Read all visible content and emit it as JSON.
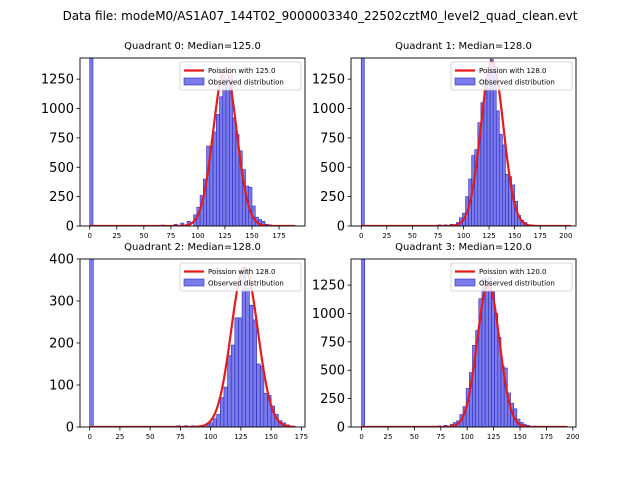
{
  "suptitle": "Data file: modeM0/AS1A07_144T02_9000003340_22502cztM0_level2_quad_clean.evt",
  "colors": {
    "fit": "#e41a1c",
    "hist_fill": "#7b7bea",
    "hist_edge": "#2a2ac0",
    "axis": "#000000"
  },
  "chart_data": [
    {
      "type": "bar",
      "title": "Quadrant 0: Median=125.0",
      "xlim": [
        -9,
        199
      ],
      "ylim": [
        0,
        1430
      ],
      "xticks": [
        0,
        25,
        50,
        75,
        100,
        125,
        150,
        175
      ],
      "yticks": [
        0,
        250,
        500,
        750,
        1000,
        1250
      ],
      "legend": {
        "fit_label": "Poission with 125.0",
        "hist_label": "Observed distribution",
        "position": "top-right"
      },
      "bins": [
        [
          0,
          1430
        ],
        [
          66,
          8
        ],
        [
          72,
          5
        ],
        [
          78,
          15
        ],
        [
          84,
          25
        ],
        [
          90,
          40
        ],
        [
          96,
          95
        ],
        [
          99,
          160
        ],
        [
          102,
          260
        ],
        [
          105,
          400
        ],
        [
          108,
          680
        ],
        [
          111,
          680
        ],
        [
          114,
          800
        ],
        [
          117,
          950
        ],
        [
          120,
          1100
        ],
        [
          123,
          1280
        ],
        [
          126,
          1250
        ],
        [
          129,
          1280
        ],
        [
          132,
          920
        ],
        [
          135,
          780
        ],
        [
          138,
          640
        ],
        [
          141,
          480
        ],
        [
          144,
          340
        ],
        [
          147,
          330
        ],
        [
          150,
          170
        ],
        [
          153,
          75
        ],
        [
          156,
          55
        ],
        [
          159,
          40
        ],
        [
          162,
          15
        ],
        [
          165,
          10
        ]
      ],
      "fit": {
        "mean": 125,
        "sigma": 10.8,
        "peak": 1340,
        "x_range": [
          0,
          190
        ]
      }
    },
    {
      "type": "bar",
      "title": "Quadrant 1: Median=128.0",
      "xlim": [
        -10,
        210
      ],
      "ylim": [
        0,
        1430
      ],
      "xticks": [
        0,
        25,
        50,
        75,
        100,
        125,
        150,
        175,
        200
      ],
      "yticks": [
        0,
        250,
        500,
        750,
        1000,
        1250
      ],
      "legend": {
        "fit_label": "Poission with 128.0",
        "hist_label": "Observed distribution",
        "position": "top-right"
      },
      "bins": [
        [
          0,
          1430
        ],
        [
          75,
          10
        ],
        [
          81,
          10
        ],
        [
          87,
          15
        ],
        [
          93,
          30
        ],
        [
          96,
          70
        ],
        [
          99,
          110
        ],
        [
          102,
          250
        ],
        [
          105,
          400
        ],
        [
          108,
          600
        ],
        [
          111,
          650
        ],
        [
          114,
          880
        ],
        [
          117,
          1050
        ],
        [
          120,
          1240
        ],
        [
          123,
          1330
        ],
        [
          126,
          1420
        ],
        [
          129,
          1360
        ],
        [
          132,
          980
        ],
        [
          135,
          780
        ],
        [
          138,
          690
        ],
        [
          141,
          440
        ],
        [
          144,
          420
        ],
        [
          147,
          350
        ],
        [
          150,
          210
        ],
        [
          153,
          90
        ],
        [
          156,
          50
        ],
        [
          159,
          30
        ],
        [
          165,
          10
        ],
        [
          171,
          5
        ]
      ],
      "fit": {
        "mean": 128,
        "sigma": 11.0,
        "peak": 1400,
        "x_range": [
          0,
          205
        ]
      }
    },
    {
      "type": "bar",
      "title": "Quadrant 2: Median=128.0",
      "xlim": [
        -8,
        178
      ],
      "ylim": [
        0,
        400
      ],
      "xticks": [
        0,
        25,
        50,
        75,
        100,
        125,
        150,
        175
      ],
      "yticks": [
        0,
        100,
        200,
        300,
        400
      ],
      "legend": {
        "fit_label": "Poission with 128.0",
        "hist_label": "Observed distribution",
        "position": "top-right"
      },
      "bins": [
        [
          0,
          400
        ],
        [
          72,
          3
        ],
        [
          78,
          3
        ],
        [
          84,
          3
        ],
        [
          90,
          3
        ],
        [
          96,
          5
        ],
        [
          99,
          10
        ],
        [
          102,
          20
        ],
        [
          105,
          30
        ],
        [
          108,
          70
        ],
        [
          111,
          95
        ],
        [
          114,
          170
        ],
        [
          117,
          195
        ],
        [
          120,
          260
        ],
        [
          123,
          260
        ],
        [
          126,
          370
        ],
        [
          129,
          330
        ],
        [
          132,
          290
        ],
        [
          135,
          255
        ],
        [
          138,
          150
        ],
        [
          141,
          145
        ],
        [
          144,
          80
        ],
        [
          147,
          75
        ],
        [
          150,
          50
        ],
        [
          153,
          30
        ],
        [
          156,
          15
        ],
        [
          159,
          10
        ],
        [
          162,
          5
        ]
      ],
      "fit": {
        "mean": 128,
        "sigma": 11.0,
        "peak": 380,
        "x_range": [
          0,
          170
        ]
      }
    },
    {
      "type": "bar",
      "title": "Quadrant 3: Median=120.0",
      "xlim": [
        -10,
        203
      ],
      "ylim": [
        0,
        1480
      ],
      "xticks": [
        0,
        25,
        50,
        75,
        100,
        125,
        150,
        175,
        200
      ],
      "yticks": [
        0,
        250,
        500,
        750,
        1000,
        1250
      ],
      "legend": {
        "fit_label": "Poission with 120.0",
        "hist_label": "Observed distribution",
        "position": "top-right"
      },
      "bins": [
        [
          0,
          1480
        ],
        [
          60,
          5
        ],
        [
          66,
          8
        ],
        [
          72,
          10
        ],
        [
          78,
          15
        ],
        [
          84,
          25
        ],
        [
          87,
          40
        ],
        [
          90,
          55
        ],
        [
          93,
          110
        ],
        [
          96,
          180
        ],
        [
          99,
          340
        ],
        [
          102,
          480
        ],
        [
          105,
          720
        ],
        [
          108,
          850
        ],
        [
          111,
          1130
        ],
        [
          114,
          1310
        ],
        [
          117,
          1300
        ],
        [
          120,
          1320
        ],
        [
          123,
          1190
        ],
        [
          126,
          1000
        ],
        [
          129,
          790
        ],
        [
          132,
          540
        ],
        [
          135,
          520
        ],
        [
          138,
          300
        ],
        [
          141,
          210
        ],
        [
          144,
          160
        ],
        [
          147,
          70
        ],
        [
          150,
          40
        ],
        [
          153,
          25
        ],
        [
          156,
          15
        ],
        [
          162,
          8
        ]
      ],
      "fit": {
        "mean": 120,
        "sigma": 10.5,
        "peak": 1260,
        "x_range": [
          0,
          195
        ]
      }
    }
  ]
}
